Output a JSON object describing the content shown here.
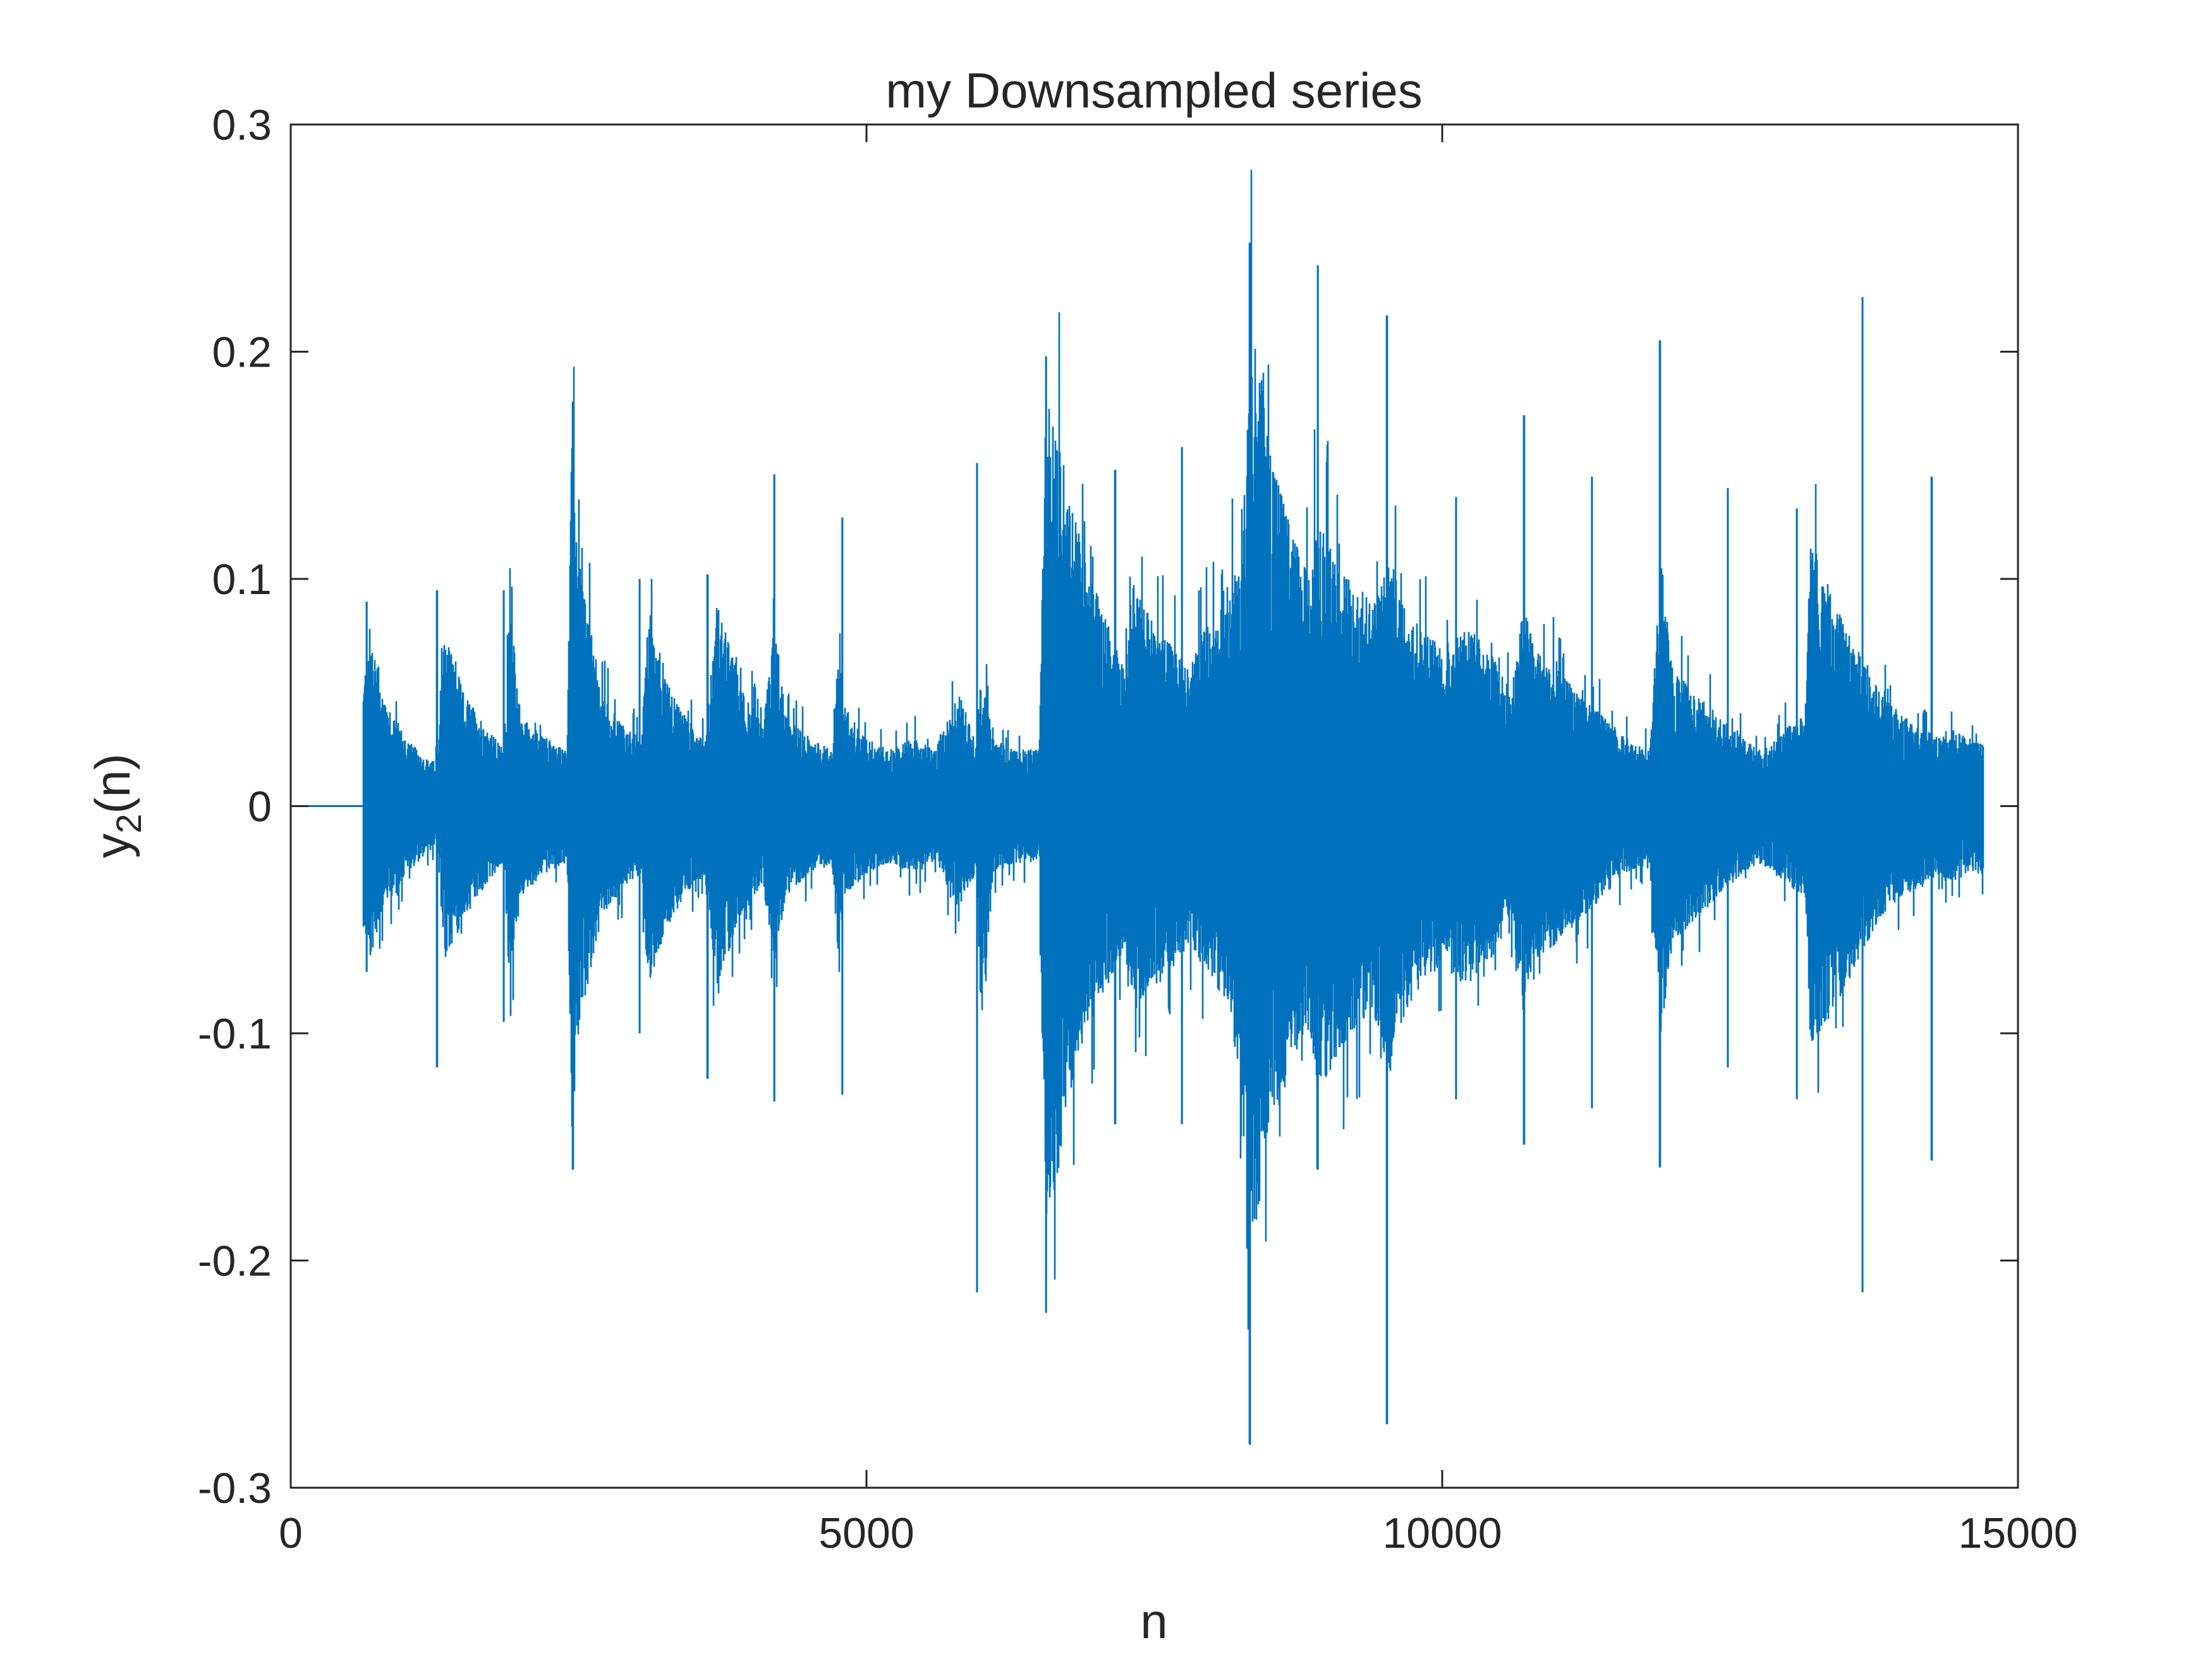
{
  "chart_data": {
    "type": "line",
    "title": "my Downsampled series",
    "xlabel": "n",
    "ylabel_main": "y",
    "ylabel_subscript": "2",
    "ylabel_suffix": "(n)",
    "xlim": [
      0,
      15000
    ],
    "ylim": [
      -0.3,
      0.3
    ],
    "xticks": [
      0,
      5000,
      10000,
      15000
    ],
    "xtick_labels": [
      "0",
      "5000",
      "10000",
      "15000"
    ],
    "yticks": [
      -0.3,
      -0.2,
      -0.1,
      0,
      0.1,
      0.2,
      0.3
    ],
    "ytick_labels": [
      "-0.3",
      "-0.2",
      "-0.1",
      "0",
      "0.1",
      "0.2",
      "0.3"
    ],
    "grid": false,
    "series": [
      {
        "color": "#0072BD",
        "n_start": 0,
        "n_end": 14700,
        "signal_onset": 630,
        "envelope": {
          "n": [
            0,
            600,
            630,
            680,
            800,
            1000,
            1200,
            1280,
            1330,
            1500,
            1700,
            1850,
            1900,
            2000,
            2200,
            2400,
            2440,
            2500,
            2700,
            2900,
            3050,
            3100,
            3300,
            3500,
            3600,
            3700,
            3900,
            4100,
            4200,
            4300,
            4500,
            4700,
            4750,
            4800,
            5000,
            5200,
            5400,
            5600,
            5800,
            5950,
            6000,
            6100,
            6300,
            6500,
            6560,
            6650,
            6750,
            6900,
            7100,
            7250,
            7300,
            7500,
            7700,
            7800,
            7900,
            8100,
            8250,
            8330,
            8400,
            8500,
            8700,
            8850,
            8900,
            9000,
            9200,
            9400,
            9550,
            9600,
            9800,
            10000,
            10200,
            10400,
            10600,
            10700,
            10800,
            11000,
            11200,
            11400,
            11600,
            11800,
            11900,
            12000,
            12200,
            12400,
            12600,
            12800,
            13000,
            13150,
            13200,
            13400,
            13600,
            13700,
            13800,
            14000,
            14200,
            14300,
            14400,
            14600,
            14700
          ],
          "upper": [
            0,
            0,
            0.05,
            0.08,
            0.05,
            0.03,
            0.02,
            0.02,
            0.08,
            0.05,
            0.035,
            0.025,
            0.09,
            0.04,
            0.03,
            0.025,
            0.16,
            0.11,
            0.05,
            0.035,
            0.03,
            0.09,
            0.05,
            0.035,
            0.03,
            0.09,
            0.055,
            0.035,
            0.08,
            0.04,
            0.03,
            0.025,
            0.07,
            0.045,
            0.03,
            0.025,
            0.03,
            0.025,
            0.05,
            0.03,
            0.06,
            0.03,
            0.025,
            0.025,
            0.18,
            0.17,
            0.14,
            0.11,
            0.08,
            0.06,
            0.1,
            0.08,
            0.07,
            0.06,
            0.08,
            0.08,
            0.12,
            0.21,
            0.2,
            0.16,
            0.12,
            0.1,
            0.13,
            0.12,
            0.1,
            0.09,
            0.11,
            0.1,
            0.08,
            0.07,
            0.08,
            0.07,
            0.05,
            0.09,
            0.07,
            0.06,
            0.05,
            0.04,
            0.03,
            0.025,
            0.11,
            0.06,
            0.05,
            0.04,
            0.03,
            0.025,
            0.035,
            0.04,
            0.12,
            0.09,
            0.07,
            0.06,
            0.05,
            0.04,
            0.035,
            0.03,
            0.035,
            0.03,
            0.03
          ],
          "lower": [
            0,
            0,
            -0.05,
            -0.07,
            -0.045,
            -0.03,
            -0.02,
            -0.02,
            -0.07,
            -0.05,
            -0.035,
            -0.025,
            -0.08,
            -0.04,
            -0.03,
            -0.025,
            -0.13,
            -0.1,
            -0.05,
            -0.035,
            -0.03,
            -0.08,
            -0.05,
            -0.035,
            -0.03,
            -0.08,
            -0.05,
            -0.035,
            -0.07,
            -0.04,
            -0.03,
            -0.025,
            -0.065,
            -0.04,
            -0.03,
            -0.025,
            -0.03,
            -0.025,
            -0.045,
            -0.03,
            -0.1,
            -0.03,
            -0.025,
            -0.025,
            -0.2,
            -0.17,
            -0.13,
            -0.1,
            -0.08,
            -0.06,
            -0.09,
            -0.08,
            -0.07,
            -0.06,
            -0.07,
            -0.08,
            -0.12,
            -0.2,
            -0.18,
            -0.14,
            -0.11,
            -0.1,
            -0.12,
            -0.12,
            -0.1,
            -0.09,
            -0.12,
            -0.1,
            -0.08,
            -0.07,
            -0.08,
            -0.07,
            -0.05,
            -0.09,
            -0.07,
            -0.06,
            -0.05,
            -0.04,
            -0.03,
            -0.025,
            -0.1,
            -0.06,
            -0.05,
            -0.04,
            -0.03,
            -0.025,
            -0.035,
            -0.04,
            -0.11,
            -0.09,
            -0.07,
            -0.06,
            -0.05,
            -0.04,
            -0.035,
            -0.03,
            -0.035,
            -0.03,
            -0.03
          ]
        },
        "spikes": [
          {
            "n": 660,
            "max": 0.09,
            "min": -0.073
          },
          {
            "n": 1270,
            "max": 0.095,
            "min": -0.115
          },
          {
            "n": 1850,
            "max": 0.095,
            "min": -0.095
          },
          {
            "n": 2450,
            "max": 0.178,
            "min": -0.16
          },
          {
            "n": 3030,
            "max": 0.1,
            "min": -0.1
          },
          {
            "n": 3620,
            "max": 0.102,
            "min": -0.12
          },
          {
            "n": 4200,
            "max": 0.146,
            "min": -0.13
          },
          {
            "n": 4790,
            "max": 0.127,
            "min": -0.127
          },
          {
            "n": 5960,
            "max": 0.151,
            "min": -0.214
          },
          {
            "n": 6560,
            "max": 0.198,
            "min": -0.223
          },
          {
            "n": 7160,
            "max": 0.148,
            "min": -0.14
          },
          {
            "n": 7740,
            "max": 0.158,
            "min": -0.14
          },
          {
            "n": 8330,
            "max": 0.248,
            "min": -0.281
          },
          {
            "n": 8920,
            "max": 0.238,
            "min": -0.16
          },
          {
            "n": 9520,
            "max": 0.216,
            "min": -0.272
          },
          {
            "n": 10120,
            "max": 0.136,
            "min": -0.129
          },
          {
            "n": 10710,
            "max": 0.172,
            "min": -0.149
          },
          {
            "n": 11300,
            "max": 0.145,
            "min": -0.133
          },
          {
            "n": 11890,
            "max": 0.205,
            "min": -0.159
          },
          {
            "n": 12480,
            "max": 0.14,
            "min": -0.115
          },
          {
            "n": 13080,
            "max": 0.131,
            "min": -0.129
          },
          {
            "n": 13650,
            "max": 0.224,
            "min": -0.214
          },
          {
            "n": 14250,
            "max": 0.145,
            "min": -0.156
          }
        ]
      }
    ]
  }
}
